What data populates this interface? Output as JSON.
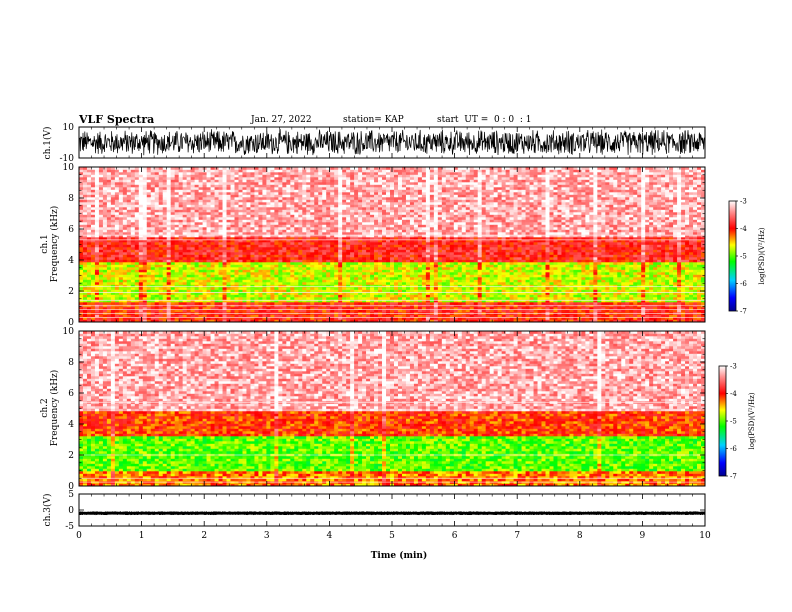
{
  "header": {
    "title": "VLF Spectra",
    "date": "Jan. 27, 2022",
    "station": "station= KAP",
    "start_ut": "start  UT =  0 : 0  : 1"
  },
  "chart_data": [
    {
      "type": "line",
      "panel": "ch1-waveform",
      "ylabel": "ch.1(V)",
      "ylim": [
        -10,
        10
      ],
      "yticks": [
        "10",
        "-10"
      ],
      "xlim": [
        0,
        10
      ],
      "description_values": "dense random waveform oscillating roughly between -9 and +9 V"
    },
    {
      "type": "heatmap",
      "panel": "ch1-spectrogram",
      "ylabel": "ch.1\nFrequency (kHz)",
      "ylim": [
        0,
        10
      ],
      "yticks": [
        "0",
        "2",
        "4",
        "6",
        "8",
        "10"
      ],
      "xlim": [
        0,
        10
      ],
      "bands_khz": [
        {
          "from": 0,
          "to": 1.3,
          "level": -4.0
        },
        {
          "from": 1.3,
          "to": 3.8,
          "level": -4.7
        },
        {
          "from": 3.8,
          "to": 5.5,
          "level": -3.9
        },
        {
          "from": 5.5,
          "to": 10,
          "level": -3.3
        }
      ],
      "colorbar": {
        "label": "log(PSD)(V²/Hz)",
        "ticks": [
          "-3",
          "-4",
          "-5",
          "-6",
          "-7"
        ],
        "range": [
          -7,
          -3
        ]
      }
    },
    {
      "type": "heatmap",
      "panel": "ch2-spectrogram",
      "ylabel": "ch.2\nFrequency (kHz)",
      "ylim": [
        0,
        10
      ],
      "yticks": [
        "0",
        "2",
        "4",
        "6",
        "8",
        "10"
      ],
      "xlim": [
        0,
        10
      ],
      "bands_khz": [
        {
          "from": 0,
          "to": 0.9,
          "level": -4.3
        },
        {
          "from": 0.9,
          "to": 3.2,
          "level": -5.0
        },
        {
          "from": 3.2,
          "to": 4.8,
          "level": -4.1
        },
        {
          "from": 4.8,
          "to": 10,
          "level": -3.3
        }
      ],
      "colorbar": {
        "label": "log(PSD)(V²/Hz)",
        "ticks": [
          "-3",
          "-4",
          "-5",
          "-6",
          "-7"
        ],
        "range": [
          -7,
          -3
        ]
      }
    },
    {
      "type": "line",
      "panel": "ch3-waveform",
      "ylabel": "ch.3(V)",
      "ylim": [
        -5,
        5
      ],
      "yticks": [
        "5",
        "0",
        "-5"
      ],
      "xlim": [
        0,
        10
      ],
      "xlabel": "Time (min)",
      "xticks": [
        "0",
        "1",
        "2",
        "3",
        "4",
        "5",
        "6",
        "7",
        "8",
        "9",
        "10"
      ],
      "description_values": "flat signal near -1 V with small amplitude about ±0.5 V"
    }
  ]
}
